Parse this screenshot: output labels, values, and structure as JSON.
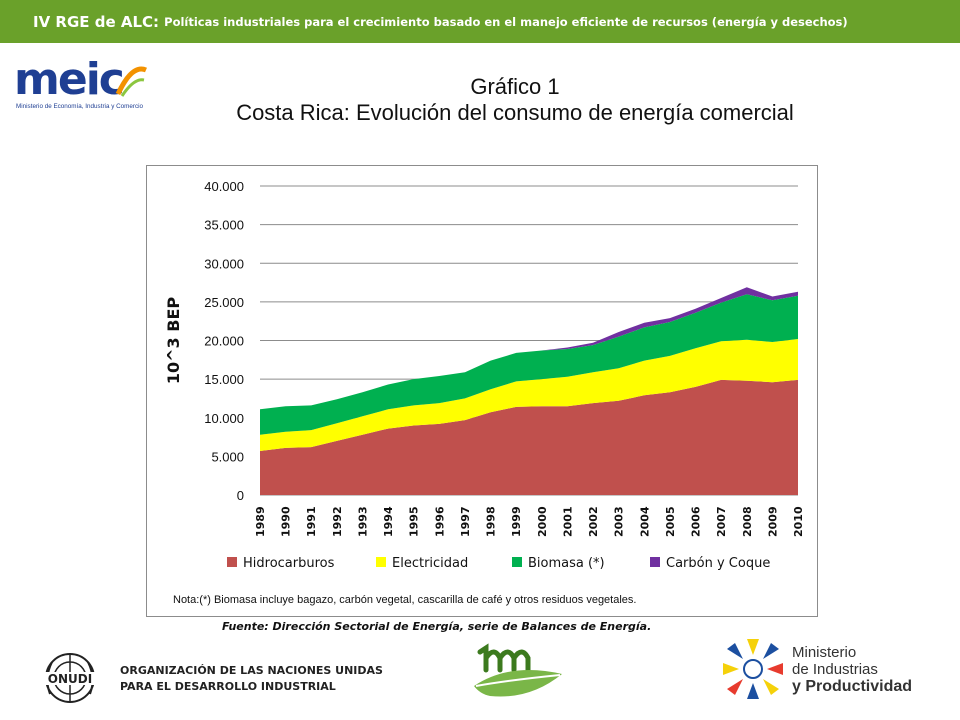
{
  "header": {
    "conference": "IV RGE de ALC:",
    "subtitle": "Políticas industriales para el crecimiento basado en el manejo eficiente de recursos (energía y desechos)"
  },
  "logos": {
    "meic": "meic",
    "meic_tagline": "Ministerio de Economía, Industria y Comercio",
    "onudi": "ONUDI",
    "onudi_line1": "ORGANIZACIÓN DE LAS NACIONES UNIDAS",
    "onudi_line2": "PARA EL DESARROLLO INDUSTRIAL",
    "ministerio_line1": "Ministerio",
    "ministerio_line2": "de Industrias",
    "ministerio_line3": "y Productividad"
  },
  "title_line1": "Gráfico 1",
  "title_line2": "Costa Rica: Evolución del consumo de energía comercial",
  "chart_data": {
    "type": "area",
    "stacked": true,
    "ylabel": "10^3 BEP",
    "ylim": [
      0,
      40000
    ],
    "yticks": [
      0,
      5000,
      10000,
      15000,
      20000,
      25000,
      30000,
      35000,
      40000
    ],
    "ytick_labels": [
      "0",
      "5.000",
      "10.000",
      "15.000",
      "20.000",
      "25.000",
      "30.000",
      "35.000",
      "40.000"
    ],
    "grid": true,
    "legend_position": "bottom",
    "x": [
      "1989",
      "1990",
      "1991",
      "1992",
      "1993",
      "1994",
      "1995",
      "1996",
      "1997",
      "1998",
      "1999",
      "2000",
      "2001",
      "2002",
      "2003",
      "2004",
      "2005",
      "2006",
      "2007",
      "2008",
      "2009",
      "2010"
    ],
    "series": [
      {
        "name": "Hidrocarburos",
        "color": "#c0504d",
        "values": [
          5700,
          6100,
          6200,
          7000,
          7800,
          8600,
          9000,
          9200,
          9700,
          10700,
          11400,
          11500,
          11500,
          11900,
          12200,
          12900,
          13300,
          14000,
          14900,
          14800,
          14600,
          14900
        ]
      },
      {
        "name": "Electricidad",
        "color": "#ffff00",
        "values": [
          2100,
          2100,
          2200,
          2300,
          2400,
          2500,
          2600,
          2700,
          2800,
          3000,
          3300,
          3500,
          3800,
          4000,
          4200,
          4500,
          4700,
          5000,
          5000,
          5300,
          5200,
          5300
        ]
      },
      {
        "name": "Biomasa (*)",
        "color": "#00b050",
        "values": [
          3300,
          3300,
          3200,
          3100,
          3100,
          3200,
          3400,
          3500,
          3400,
          3700,
          3700,
          3700,
          3600,
          3500,
          4100,
          4300,
          4400,
          4600,
          5000,
          5900,
          5400,
          5600
        ]
      },
      {
        "name": "Carbón y Coque",
        "color": "#7030a0",
        "values": [
          0,
          0,
          0,
          0,
          0,
          0,
          0,
          0,
          0,
          0,
          0,
          0,
          200,
          300,
          600,
          600,
          500,
          500,
          600,
          900,
          500,
          500
        ]
      }
    ],
    "note": "Nota:(*)  Biomasa incluye bagazo, carbón vegetal, cascarilla de café y otros residuos vegetales.",
    "source": "Fuente: Dirección Sectorial de Energía, serie de Balances de Energía."
  }
}
